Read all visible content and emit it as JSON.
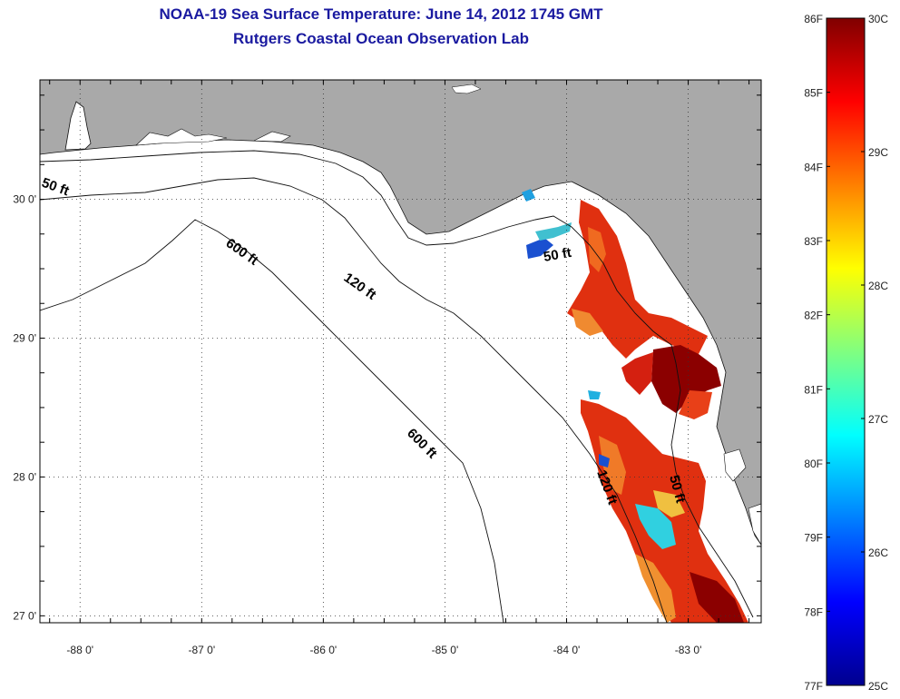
{
  "title": {
    "line1": "NOAA-19 Sea Surface Temperature:  June 14, 2012 1745 GMT",
    "line2": "Rutgers Coastal Ocean Observation Lab"
  },
  "axes": {
    "lat_ticks": [
      {
        "value": 30,
        "label": "30 0'"
      },
      {
        "value": 29,
        "label": "29 0'"
      },
      {
        "value": 28,
        "label": "28 0'"
      },
      {
        "value": 27,
        "label": "27 0'"
      }
    ],
    "lon_ticks": [
      {
        "value": -88,
        "label": "-88 0'"
      },
      {
        "value": -87,
        "label": "-87 0'"
      },
      {
        "value": -86,
        "label": "-86 0'"
      },
      {
        "value": -85,
        "label": "-85 0'"
      },
      {
        "value": -84,
        "label": "-84 0'"
      },
      {
        "value": -83,
        "label": "-83 0'"
      }
    ],
    "lon_range": [
      -88.33,
      -82.4
    ],
    "lat_range": [
      26.95,
      30.86
    ]
  },
  "contours": {
    "c50_left": "50 ft",
    "c600_a": "600 ft",
    "c120_a": "120 ft",
    "c50_b": "50 ft",
    "c600_b": "600 ft",
    "c120_b": "120 ft",
    "c50_c": "50 ft"
  },
  "colorbar": {
    "fahrenheit": [
      "86F",
      "85F",
      "84F",
      "83F",
      "82F",
      "81F",
      "80F",
      "79F",
      "78F",
      "77F"
    ],
    "celsius": [
      "30C",
      "29C",
      "28C",
      "27C",
      "26C",
      "25C"
    ],
    "range_c": [
      25,
      30
    ]
  },
  "colors": {
    "land": "#a9a9a9",
    "title": "#1a1aa0",
    "sst_warm": "#8b0000",
    "sst_hot": "#d42010",
    "sst_mid": "#f07020",
    "sst_cool": "#30d0e0",
    "sst_cold": "#1040c0"
  }
}
